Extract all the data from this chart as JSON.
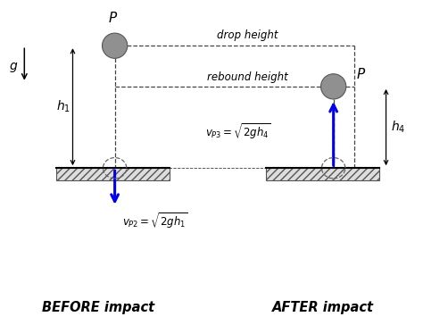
{
  "fig_width": 4.74,
  "fig_height": 3.64,
  "dpi": 100,
  "bg_color": "#ffffff",
  "ball_color": "#909090",
  "ball_edge_color": "#555555",
  "floor_hatch_color": "#555555",
  "blue_arrow_color": "#0000ee",
  "dashed_line_color": "#444444",
  "text_color": "#000000",
  "before_label": "BEFORE impact",
  "after_label": "AFTER impact",
  "g_label": "g",
  "drop_height_label": "drop height",
  "rebound_height_label": "rebound height"
}
